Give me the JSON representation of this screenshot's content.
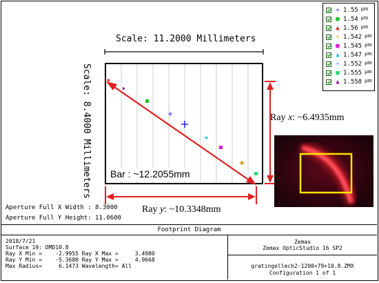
{
  "plot": {
    "scale_top": "Scale: 11.2000 Millimeters",
    "scale_left": "Scale:  8.4000 Millimeters",
    "bar_label": "Bar :  ~12.2055mm",
    "ray_x_label_prefix": "Ray ",
    "ray_x_label_var": "x",
    "ray_x_label_suffix": ":  ~6.4935mm",
    "ray_y_label_prefix": "Ray ",
    "ray_y_label_var": "y",
    "ray_y_label_suffix": ":  ~10.3348mm",
    "aperture_x": "Aperture Full X Width : 8.3000",
    "aperture_y": "Aperture Full Y Height: 11.0600"
  },
  "legend": {
    "unit": "μm",
    "items": [
      {
        "value": "1.55",
        "marker": "+",
        "color": "#1f2bd6"
      },
      {
        "value": "1.54",
        "marker": "■",
        "color": "#22c022"
      },
      {
        "value": "1.56",
        "marker": "▲",
        "color": "#d81b1b"
      },
      {
        "value": "1.542",
        "marker": "+",
        "color": "#d4a21a"
      },
      {
        "value": "1.545",
        "marker": "■",
        "color": "#d61fd6"
      },
      {
        "value": "1.547",
        "marker": "▲",
        "color": "#19c6c6"
      },
      {
        "value": "1.552",
        "marker": "+",
        "color": "#8a8af0"
      },
      {
        "value": "1.555",
        "marker": "■",
        "color": "#22d877"
      },
      {
        "value": "1.558",
        "marker": "▲",
        "color": "#8a1f8a"
      }
    ]
  },
  "footer": {
    "title": "Footprint Diagram",
    "date": "2018/7/21",
    "surface": "Surface 19: DMD10.8",
    "ray_x": "Ray X Min =    -2.9955 Ray X Max =     3.4980",
    "ray_y": "Ray Y Min =    -5.3680 Ray Y Max =     4.9668",
    "max_radius": "Max Radius=     6.1473 Wavelength= All",
    "company": "Zemax",
    "product": "Zemax OpticStudio 16 SP2",
    "file": "gratingellech2-1200+79+10.8.ZMX",
    "config": "Configuration 1 of 1"
  }
}
